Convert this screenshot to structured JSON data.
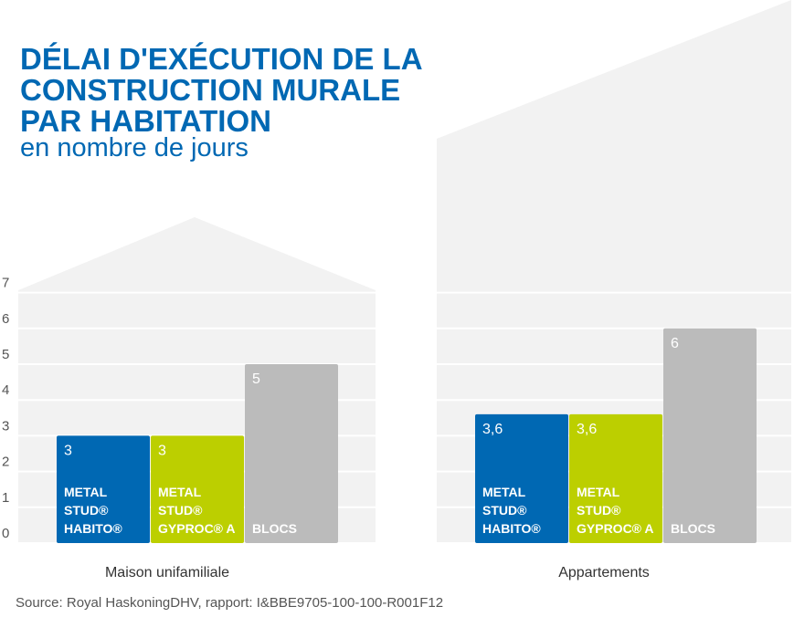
{
  "header": {
    "title_lines": [
      "DÉLAI D'EXÉCUTION DE LA",
      "CONSTRUCTION MURALE",
      "PAR HABITATION"
    ],
    "subtitle": "en nombre de jours"
  },
  "footer": {
    "source": "Source: Royal HaskoningDHV, rapport: I&BBE9705-100-100-R001F12"
  },
  "colors": {
    "title": "#0068b3",
    "house_background": "#f2f2f2",
    "gridline": "#ffffff",
    "axis_text": "#555555"
  },
  "chart_data": {
    "type": "bar",
    "title": "DÉLAI D'EXÉCUTION DE LA CONSTRUCTION MURALE PAR HABITATION",
    "subtitle": "en nombre de jours",
    "categories": [
      "Maison unifamiliale",
      "Appartements"
    ],
    "ylim": [
      0,
      7
    ],
    "yticks": [
      0,
      1,
      2,
      3,
      4,
      5,
      6,
      7
    ],
    "grid": true,
    "legend": "none",
    "value_labels": [
      [
        "3",
        "3",
        "5"
      ],
      [
        "3,6",
        "3,6",
        "6"
      ]
    ],
    "series": [
      {
        "label_lines": [
          "METAL",
          "STUD®",
          "HABITO®"
        ],
        "color": "#0068b3",
        "values": [
          3,
          3.6
        ]
      },
      {
        "label_lines": [
          "METAL",
          "STUD®",
          "GYPROC® A"
        ],
        "color": "#bccf00",
        "values": [
          3,
          3.6
        ]
      },
      {
        "label_lines": [
          "BLOCS"
        ],
        "color": "#bbbbbb",
        "values": [
          5,
          6
        ]
      }
    ]
  }
}
